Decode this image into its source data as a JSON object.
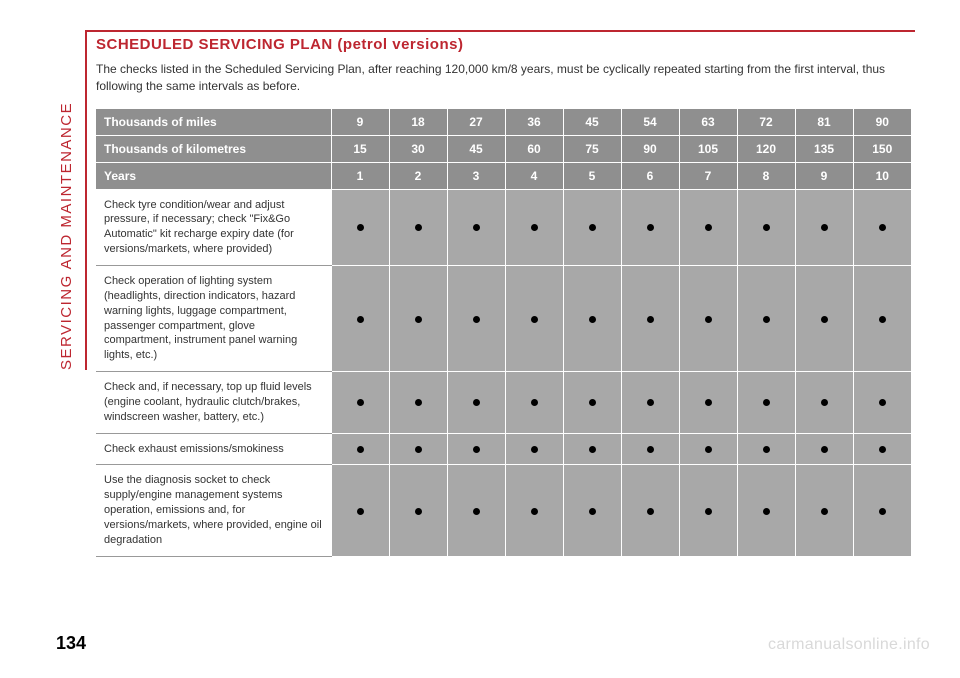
{
  "page_number": "134",
  "watermark": "carmanualsonline.info",
  "side_label": "SERVICING AND MAINTENANCE",
  "heading": "SCHEDULED SERVICING PLAN (petrol versions)",
  "intro": "The checks listed in the Scheduled Servicing Plan, after reaching 120,000 km/8 years, must be cyclically repeated starting from the first interval, thus following the same intervals as before.",
  "colors": {
    "accent": "#bd2630",
    "header_bg": "#8f8f8f",
    "cell_bg": "#a8a8a8",
    "text": "#333333",
    "watermark": "#d9d9d9",
    "white": "#ffffff",
    "dot": "#000000"
  },
  "table": {
    "header_rows": [
      {
        "label": "Thousands of miles",
        "values": [
          "9",
          "18",
          "27",
          "36",
          "45",
          "54",
          "63",
          "72",
          "81",
          "90"
        ]
      },
      {
        "label": "Thousands of kilometres",
        "values": [
          "15",
          "30",
          "45",
          "60",
          "75",
          "90",
          "105",
          "120",
          "135",
          "150"
        ]
      },
      {
        "label": "Years",
        "values": [
          "1",
          "2",
          "3",
          "4",
          "5",
          "6",
          "7",
          "8",
          "9",
          "10"
        ]
      }
    ],
    "body_rows": [
      {
        "label": "Check tyre condition/wear and adjust pressure, if necessary; check \"Fix&Go Automatic\" kit recharge expiry date (for versions/markets, where provided)",
        "marks": [
          true,
          true,
          true,
          true,
          true,
          true,
          true,
          true,
          true,
          true
        ]
      },
      {
        "label": "Check operation of lighting system (headlights, direction indicators, hazard warning lights, luggage compartment, passenger compartment, glove compartment, instrument panel warning lights, etc.)",
        "marks": [
          true,
          true,
          true,
          true,
          true,
          true,
          true,
          true,
          true,
          true
        ]
      },
      {
        "label": "Check and, if necessary, top up fluid levels (engine coolant, hydraulic clutch/brakes, windscreen washer, battery, etc.)",
        "marks": [
          true,
          true,
          true,
          true,
          true,
          true,
          true,
          true,
          true,
          true
        ]
      },
      {
        "label": "Check exhaust emissions/smokiness",
        "marks": [
          true,
          true,
          true,
          true,
          true,
          true,
          true,
          true,
          true,
          true
        ]
      },
      {
        "label": "Use the diagnosis socket to check supply/engine management systems operation, emissions and, for versions/markets, where provided, engine oil degradation",
        "marks": [
          true,
          true,
          true,
          true,
          true,
          true,
          true,
          true,
          true,
          true
        ]
      }
    ]
  }
}
